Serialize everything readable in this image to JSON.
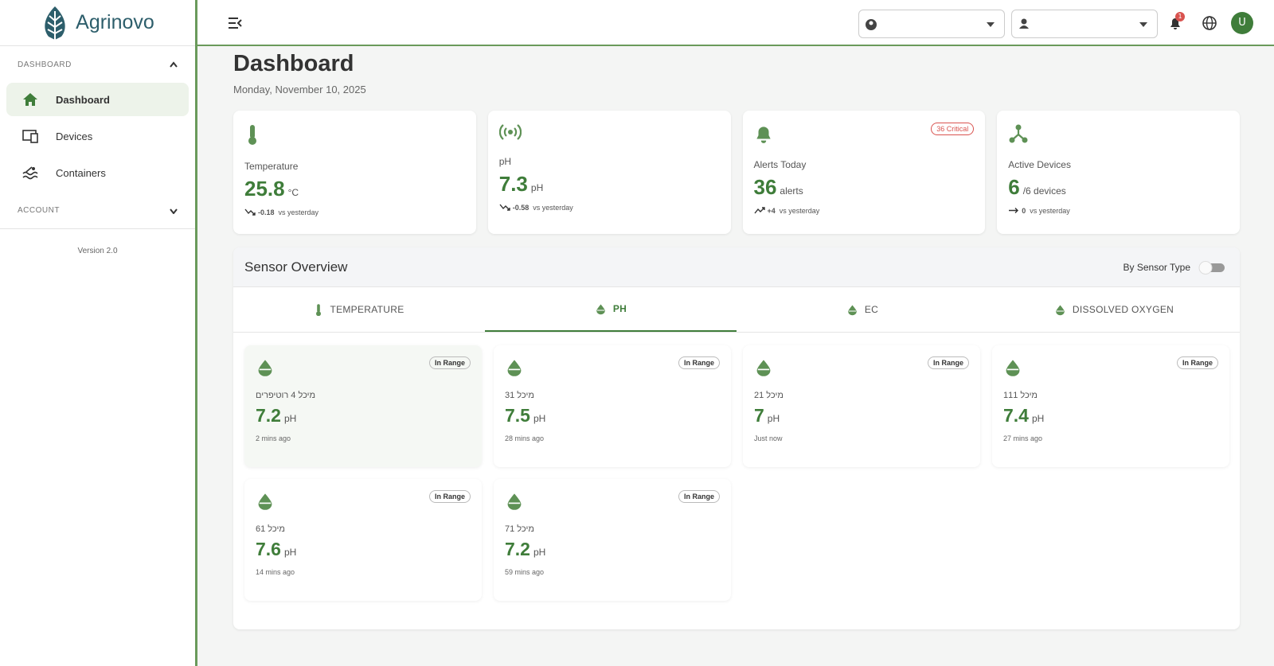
{
  "brand": "Agrinovo",
  "sidebar": {
    "sections": [
      {
        "label": "DASHBOARD",
        "items": [
          "Dashboard",
          "Devices",
          "Containers"
        ]
      },
      {
        "label": "ACCOUNT"
      }
    ],
    "version": "Version 2.0"
  },
  "topbar": {
    "notification_count": "1",
    "avatar": "U"
  },
  "header": {
    "title": "Dashboard",
    "date": "Monday, November 10, 2025"
  },
  "stats": [
    {
      "label": "Temperature",
      "value": "25.8",
      "unit": "°C",
      "change": "-0.18",
      "compare": "vs yesterday"
    },
    {
      "label": "pH",
      "value": "7.3",
      "unit": "pH",
      "change": "-0.58",
      "compare": "vs yesterday"
    },
    {
      "label": "Alerts Today",
      "value": "36",
      "unit": "alerts",
      "change": "+4",
      "compare": "vs yesterday",
      "badge": "36 Critical"
    },
    {
      "label": "Active Devices",
      "value": "6",
      "unit": "/6 devices",
      "change": "0",
      "compare": "vs yesterday"
    }
  ],
  "sensor_overview": {
    "title": "Sensor Overview",
    "toggle_label": "By Sensor Type",
    "tabs": [
      "TEMPERATURE",
      "PH",
      "EC",
      "DISSOLVED OXYGEN"
    ],
    "cards": [
      {
        "status": "In Range",
        "name": "מיכל 4 רוטיפרים",
        "value": "7.2",
        "unit": "pH",
        "time": "2 mins ago"
      },
      {
        "status": "In Range",
        "name": "מיכל 31",
        "value": "7.5",
        "unit": "pH",
        "time": "28 mins ago"
      },
      {
        "status": "In Range",
        "name": "מיכל 21",
        "value": "7",
        "unit": "pH",
        "time": "Just now"
      },
      {
        "status": "In Range",
        "name": "מיכל 111",
        "value": "7.4",
        "unit": "pH",
        "time": "27 mins ago"
      },
      {
        "status": "In Range",
        "name": "מיכל 61",
        "value": "7.6",
        "unit": "pH",
        "time": "14 mins ago"
      },
      {
        "status": "In Range",
        "name": "מיכל 71",
        "value": "7.2",
        "unit": "pH",
        "time": "59 mins ago"
      }
    ]
  }
}
